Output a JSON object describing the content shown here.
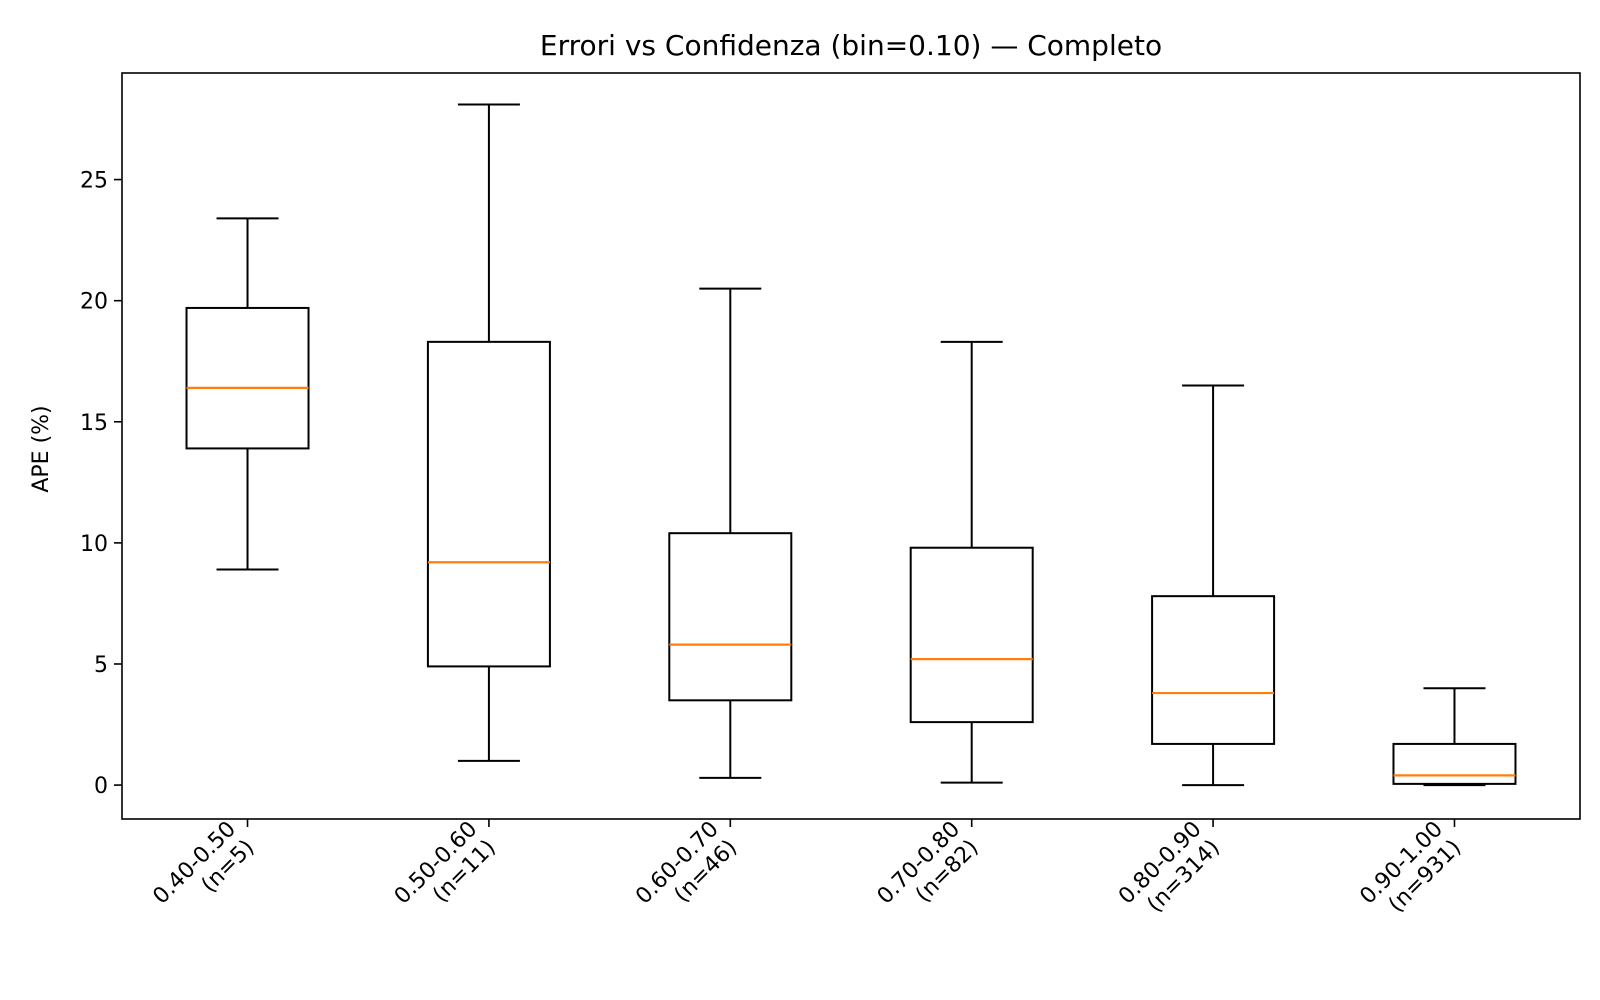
{
  "chart_data": {
    "type": "boxplot",
    "title": "Errori vs Confidenza (bin=0.10) — Completo",
    "xlabel": "",
    "ylabel": "APE (%)",
    "ylim": [
      -1.4,
      29.4
    ],
    "yticks": [
      0,
      5,
      10,
      15,
      20,
      25
    ],
    "grid": false,
    "categories": [
      {
        "bin": "0.40-0.50",
        "n_label": "(n=5)"
      },
      {
        "bin": "0.50-0.60",
        "n_label": "(n=11)"
      },
      {
        "bin": "0.60-0.70",
        "n_label": "(n=46)"
      },
      {
        "bin": "0.70-0.80",
        "n_label": "(n=82)"
      },
      {
        "bin": "0.80-0.90",
        "n_label": "(n=314)"
      },
      {
        "bin": "0.90-1.00",
        "n_label": "(n=931)"
      }
    ],
    "boxes": [
      {
        "whisker_low": 8.9,
        "q1": 13.9,
        "median": 16.4,
        "q3": 19.7,
        "whisker_high": 23.4
      },
      {
        "whisker_low": 1.0,
        "q1": 4.9,
        "median": 9.2,
        "q3": 18.3,
        "whisker_high": 28.1
      },
      {
        "whisker_low": 0.3,
        "q1": 3.5,
        "median": 5.8,
        "q3": 10.4,
        "whisker_high": 20.5
      },
      {
        "whisker_low": 0.1,
        "q1": 2.6,
        "median": 5.2,
        "q3": 9.8,
        "whisker_high": 18.3
      },
      {
        "whisker_low": 0.0,
        "q1": 1.7,
        "median": 3.8,
        "q3": 7.8,
        "whisker_high": 16.5
      },
      {
        "whisker_low": 0.0,
        "q1": 0.05,
        "median": 0.4,
        "q3": 1.7,
        "whisker_high": 4.0
      }
    ],
    "colors": {
      "box": "#000000",
      "median": "#ff7f0e"
    }
  }
}
